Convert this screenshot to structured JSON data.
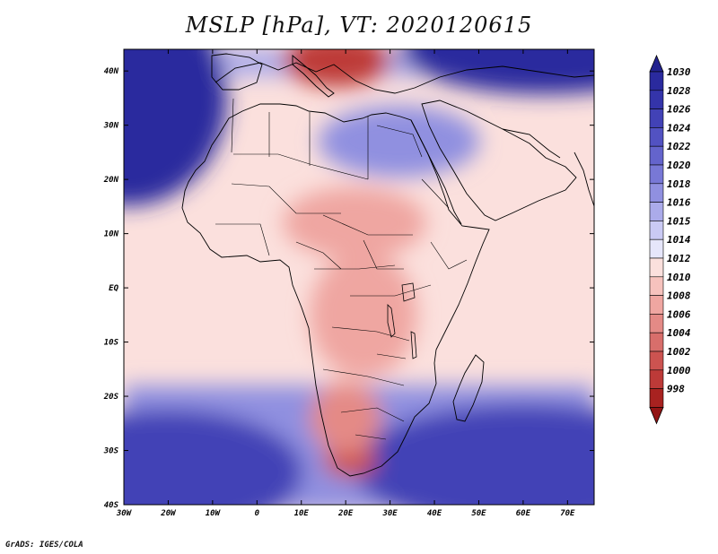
{
  "title": "MSLP [hPa], VT: 2020120615",
  "credit": "GrADS: IGES/COLA",
  "map": {
    "lon_range": [
      -30,
      76
    ],
    "lat_range": [
      -40,
      44
    ],
    "lat_ticks": [
      {
        "value": 40,
        "label": "40N"
      },
      {
        "value": 30,
        "label": "30N"
      },
      {
        "value": 20,
        "label": "20N"
      },
      {
        "value": 10,
        "label": "10N"
      },
      {
        "value": 0,
        "label": "EQ"
      },
      {
        "value": -10,
        "label": "10S"
      },
      {
        "value": -20,
        "label": "20S"
      },
      {
        "value": -30,
        "label": "30S"
      },
      {
        "value": -40,
        "label": "40S"
      }
    ],
    "lon_ticks": [
      {
        "value": -30,
        "label": "30W"
      },
      {
        "value": -20,
        "label": "20W"
      },
      {
        "value": -10,
        "label": "10W"
      },
      {
        "value": 0,
        "label": "0"
      },
      {
        "value": 10,
        "label": "10E"
      },
      {
        "value": 20,
        "label": "20E"
      },
      {
        "value": 30,
        "label": "30E"
      },
      {
        "value": 40,
        "label": "40E"
      },
      {
        "value": 50,
        "label": "50E"
      },
      {
        "value": 60,
        "label": "60E"
      },
      {
        "value": 70,
        "label": "70E"
      }
    ]
  },
  "colorbar": {
    "levels": [
      {
        "label": "1030",
        "color": "#2a2a9e"
      },
      {
        "label": "1028",
        "color": "#3434aa"
      },
      {
        "label": "1026",
        "color": "#4242b6"
      },
      {
        "label": "1024",
        "color": "#5252c2"
      },
      {
        "label": "1022",
        "color": "#6464cc"
      },
      {
        "label": "1020",
        "color": "#7878d6"
      },
      {
        "label": "1018",
        "color": "#9090e0"
      },
      {
        "label": "1016",
        "color": "#ababea"
      },
      {
        "label": "1015",
        "color": "#cacaf4"
      },
      {
        "label": "1014",
        "color": "#e6e6fa"
      },
      {
        "label": "1012",
        "color": "#fbe0dd"
      },
      {
        "label": "1010",
        "color": "#f6c2bd"
      },
      {
        "label": "1008",
        "color": "#efa6a1"
      },
      {
        "label": "1006",
        "color": "#e48a86"
      },
      {
        "label": "1004",
        "color": "#d86e6b"
      },
      {
        "label": "1002",
        "color": "#cc5350"
      },
      {
        "label": "1000",
        "color": "#bd3a38"
      },
      {
        "label": "998",
        "color": "#a82220"
      }
    ],
    "top_color": "#23238f",
    "bottom_color": "#921414"
  },
  "pressure_centres": [
    {
      "name": "atlantic-high",
      "lon": -29,
      "lat": 35,
      "hpa": 1030
    },
    {
      "name": "indian-ocean-high",
      "lon": 60,
      "lat": -33,
      "hpa": 1026
    },
    {
      "name": "south-atlantic-high",
      "lon": -20,
      "lat": -34,
      "hpa": 1026
    },
    {
      "name": "asian-high",
      "lon": 65,
      "lat": 44,
      "hpa": 1030
    },
    {
      "name": "saharan-ridge",
      "lon": 32,
      "lat": 27,
      "hpa": 1018
    },
    {
      "name": "mediterranean-low",
      "lon": 18,
      "lat": 42,
      "hpa": 1000
    },
    {
      "name": "southern-africa-low",
      "lon": 21,
      "lat": -32,
      "hpa": 1002
    },
    {
      "name": "congo-trough",
      "lon": 24,
      "lat": -5,
      "hpa": 1008
    },
    {
      "name": "kalahari-low",
      "lon": 20,
      "lat": -24,
      "hpa": 1006
    },
    {
      "name": "sudan-low",
      "lon": 22,
      "lat": 12,
      "hpa": 1008
    }
  ],
  "colors": {
    "land_outline": "#000000",
    "frame": "#000000",
    "text": "#000000"
  }
}
